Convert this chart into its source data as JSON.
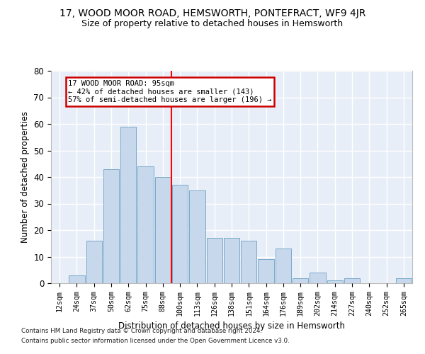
{
  "title_line1": "17, WOOD MOOR ROAD, HEMSWORTH, PONTEFRACT, WF9 4JR",
  "title_line2": "Size of property relative to detached houses in Hemsworth",
  "xlabel": "Distribution of detached houses by size in Hemsworth",
  "ylabel": "Number of detached properties",
  "bin_labels": [
    "12sqm",
    "24sqm",
    "37sqm",
    "50sqm",
    "62sqm",
    "75sqm",
    "88sqm",
    "100sqm",
    "113sqm",
    "126sqm",
    "138sqm",
    "151sqm",
    "164sqm",
    "176sqm",
    "189sqm",
    "202sqm",
    "214sqm",
    "227sqm",
    "240sqm",
    "252sqm",
    "265sqm"
  ],
  "bar_values": [
    0,
    3,
    16,
    43,
    59,
    44,
    40,
    37,
    35,
    17,
    17,
    16,
    9,
    13,
    2,
    4,
    1,
    2,
    0,
    0,
    2
  ],
  "bar_color": "#c8d8ec",
  "bar_edge_color": "#7aaac8",
  "background_color": "#e8eef8",
  "grid_color": "#ffffff",
  "red_line_x": 6.5,
  "annotation_text": "17 WOOD MOOR ROAD: 95sqm\n← 42% of detached houses are smaller (143)\n57% of semi-detached houses are larger (196) →",
  "annotation_box_color": "#ffffff",
  "annotation_box_edge_color": "#cc0000",
  "footnote_line1": "Contains HM Land Registry data © Crown copyright and database right 2024.",
  "footnote_line2": "Contains public sector information licensed under the Open Government Licence v3.0.",
  "ylim": [
    0,
    80
  ],
  "yticks": [
    0,
    10,
    20,
    30,
    40,
    50,
    60,
    70,
    80
  ],
  "fig_bg": "#ffffff"
}
